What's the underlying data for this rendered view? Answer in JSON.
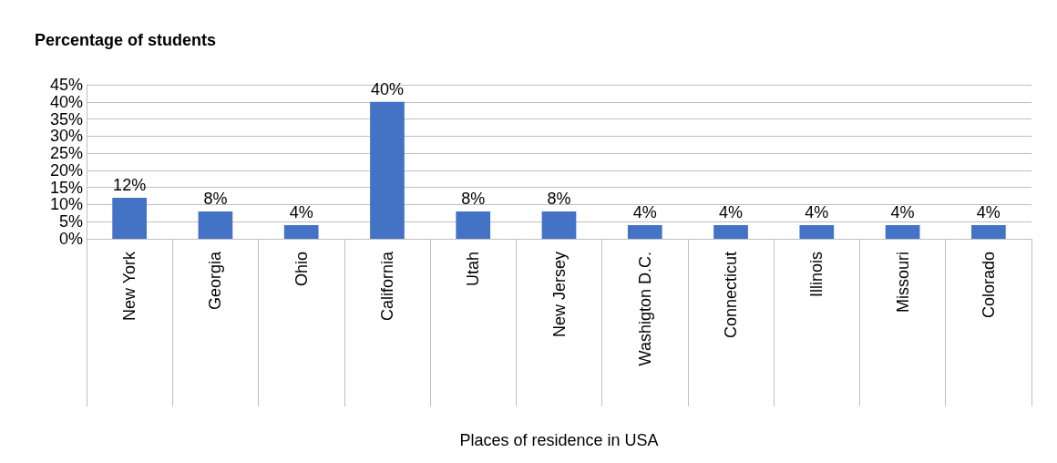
{
  "chart_data": {
    "type": "bar",
    "title": "Percentage of students",
    "xlabel": "Places of residence in USA",
    "categories": [
      "New York",
      "Georgia",
      "Ohio",
      "California",
      "Utah",
      "New Jersey",
      "Washigton D.C.",
      "Connecticut",
      "Illinois",
      "Missouri",
      "Colorado"
    ],
    "values": [
      12,
      8,
      4,
      40,
      8,
      8,
      4,
      4,
      4,
      4,
      4
    ],
    "value_labels": [
      "12%",
      "8%",
      "4%",
      "40%",
      "8%",
      "8%",
      "4%",
      "4%",
      "4%",
      "4%",
      "4%"
    ],
    "color": "#4472c4",
    "ylim": [
      0,
      45
    ],
    "yticks": [
      {
        "value": 0,
        "label": "0%"
      },
      {
        "value": 5,
        "label": "5%"
      },
      {
        "value": 10,
        "label": "10%"
      },
      {
        "value": 15,
        "label": "15%"
      },
      {
        "value": 20,
        "label": "20%"
      },
      {
        "value": 25,
        "label": "25%"
      },
      {
        "value": 30,
        "label": "30%"
      },
      {
        "value": 35,
        "label": "35%"
      },
      {
        "value": 40,
        "label": "40%"
      },
      {
        "value": 45,
        "label": "45%"
      }
    ],
    "grid": "y"
  }
}
